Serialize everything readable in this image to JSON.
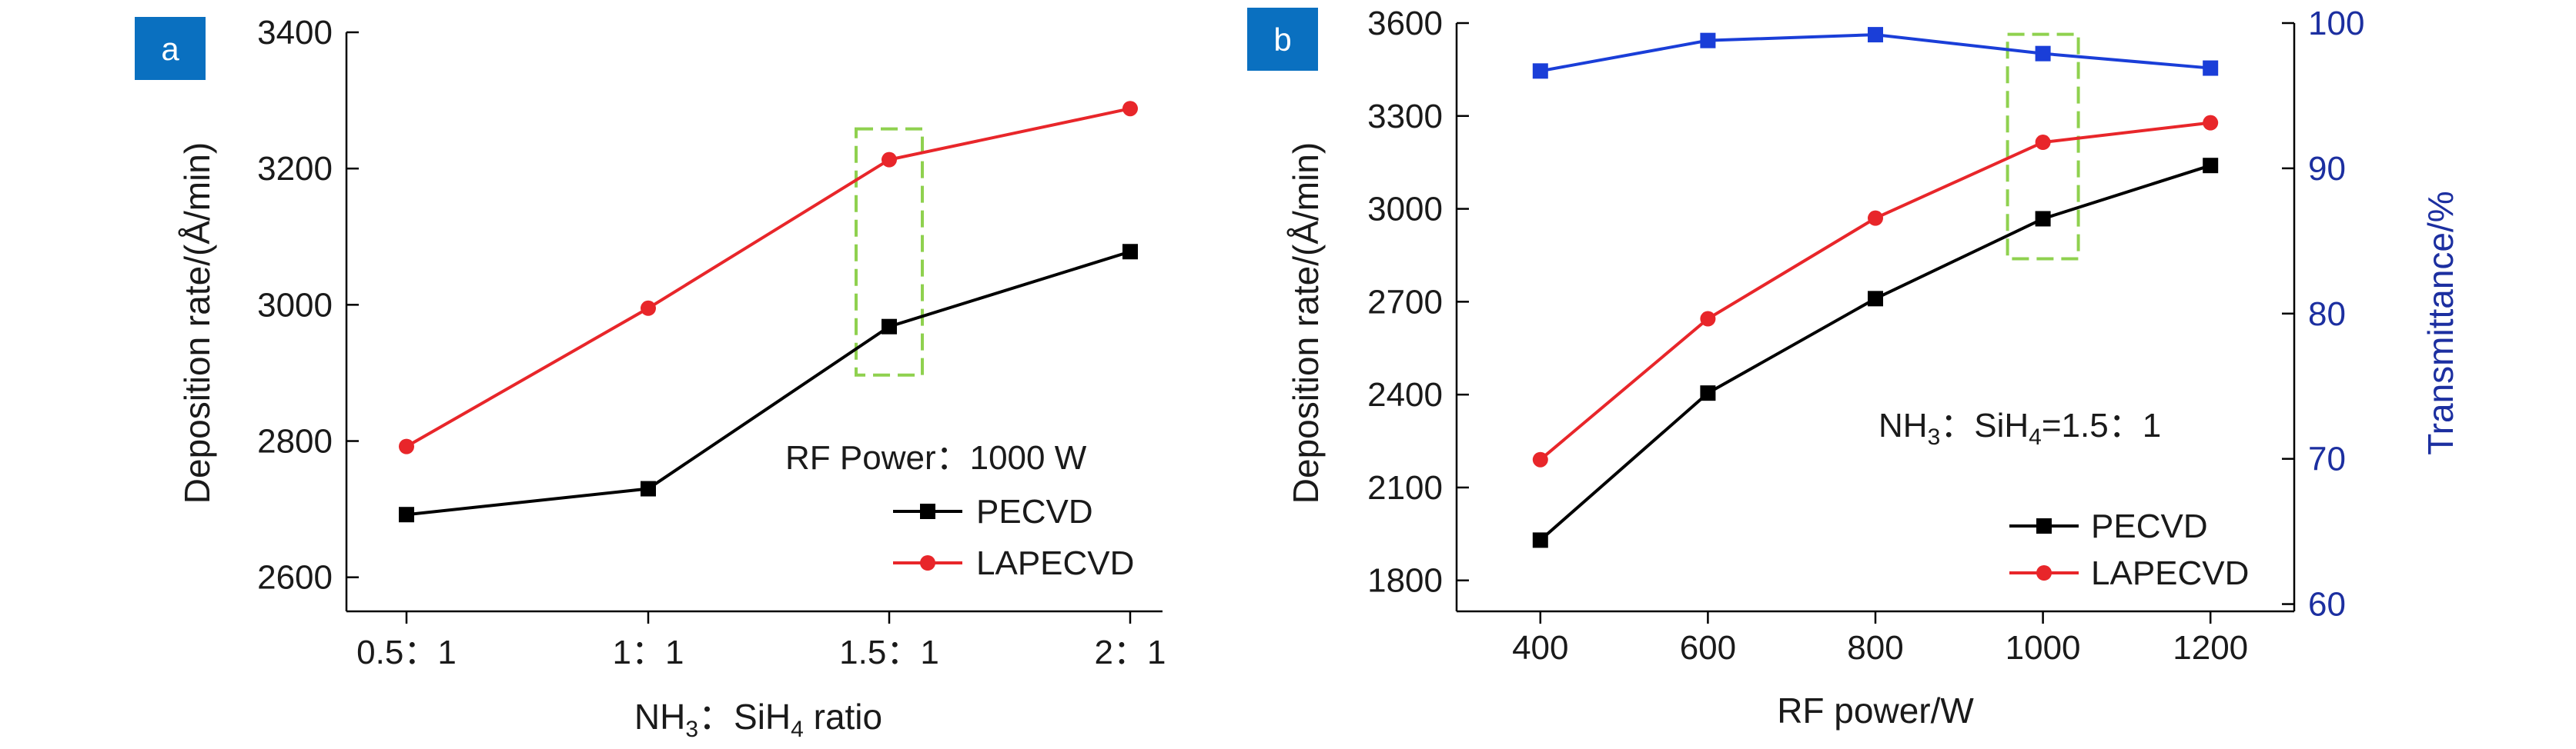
{
  "chart_data": [
    {
      "panel_label": "a",
      "type": "line",
      "categories": [
        "0.5：1",
        "1：1",
        "1.5：1",
        "2：1"
      ],
      "xlabel": {
        "base": "NH",
        "sub1": "3",
        "mid": "：SiH",
        "sub2": "4",
        "tail": " ratio"
      },
      "ylabel": "Deposition rate/(Å/min)",
      "ylim": [
        2550,
        3400
      ],
      "yticks": [
        2600,
        2800,
        3000,
        3200,
        3400
      ],
      "annotation": "RF Power：1000 W",
      "highlight_category": "1.5：1",
      "series": [
        {
          "name": "PECVD",
          "color": "#000000",
          "marker": "square",
          "values": [
            2692,
            2730,
            2968,
            3078
          ]
        },
        {
          "name": "LAPECVD",
          "color": "#e8262a",
          "marker": "circle",
          "values": [
            2792,
            2995,
            3213,
            3288
          ]
        }
      ]
    },
    {
      "panel_label": "b",
      "type": "line",
      "x": [
        400,
        600,
        800,
        1000,
        1200
      ],
      "xticks": [
        "400",
        "600",
        "800",
        "1000",
        "1200"
      ],
      "xlabel": "RF power/W",
      "ylabel": "Deposition rate/(Å/min)",
      "ylim": [
        1700,
        3600
      ],
      "yticks": [
        1800,
        2100,
        2400,
        2700,
        3000,
        3300,
        3600
      ],
      "y2label": "Transmittance/%",
      "y2lim": [
        59.5,
        100
      ],
      "y2ticks": [
        60,
        70,
        80,
        90,
        100
      ],
      "annotation": {
        "base": "NH",
        "sub1": "3",
        "mid": "：SiH",
        "sub2": "4",
        "tail": "=1.5：1"
      },
      "highlight_x": 1000,
      "series": [
        {
          "name": "PECVD",
          "color": "#000000",
          "marker": "square",
          "axis": "left",
          "values": [
            1930,
            2405,
            2710,
            2968,
            3140
          ]
        },
        {
          "name": "LAPECVD",
          "color": "#e8262a",
          "marker": "circle",
          "axis": "left",
          "values": [
            2190,
            2645,
            2970,
            3215,
            3278
          ]
        },
        {
          "name": "Transmittance",
          "color": "#1a3ed8",
          "marker": "square",
          "axis": "right",
          "legend": false,
          "values": [
            96.7,
            98.8,
            99.2,
            97.9,
            96.9
          ]
        }
      ]
    }
  ],
  "colors": {
    "badge": "#0a70c0",
    "highlight_box": "#8fd14f",
    "right_axis": "#1c2fa0"
  }
}
